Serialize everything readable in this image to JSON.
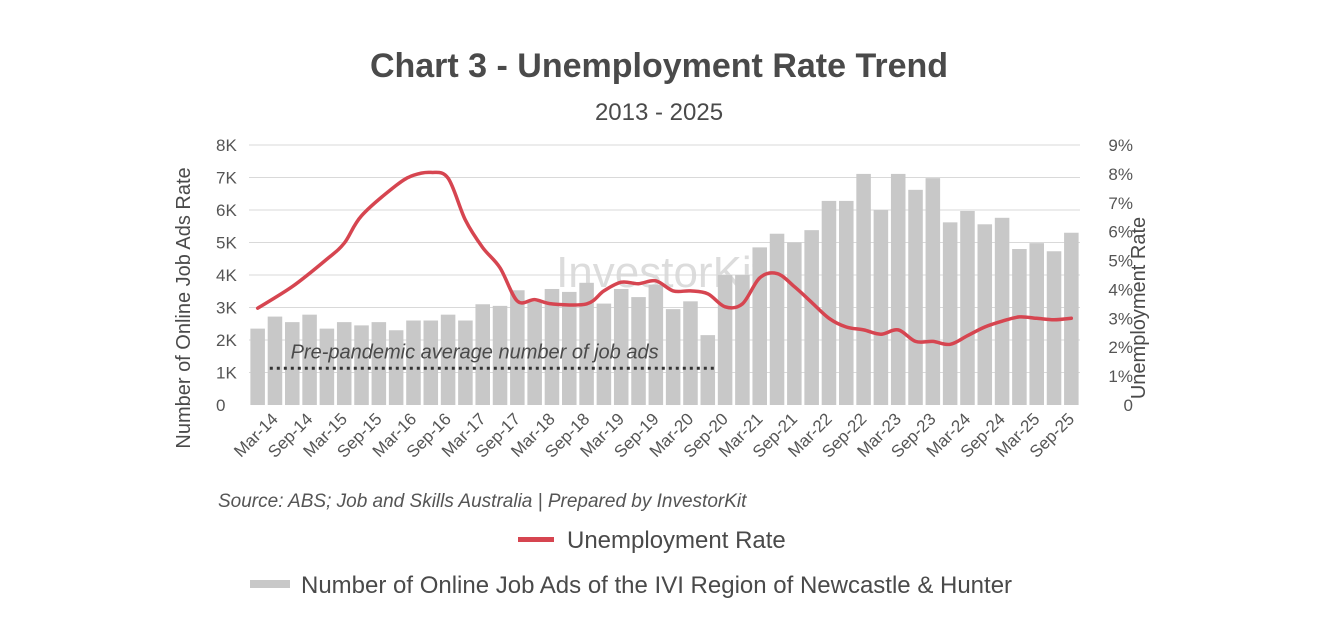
{
  "chart_data": {
    "type": "bar+line",
    "title": "Chart 3 - Unemployment Rate Trend",
    "subtitle": "2013 - 2025",
    "ylabel_left": "Number of Online Job Ads Rate",
    "ylabel_right": "Unemployment Rate",
    "y_left_ticks": [
      "0",
      "1K",
      "2K",
      "3K",
      "4K",
      "5K",
      "6K",
      "7K",
      "8K"
    ],
    "y_right_ticks": [
      "0",
      "1%",
      "2%",
      "3%",
      "4%",
      "5%",
      "6%",
      "7%",
      "8%",
      "9%"
    ],
    "ylim_left": [
      0,
      8000
    ],
    "ylim_right": [
      0,
      9
    ],
    "grid": true,
    "x_labels": [
      "Mar-14",
      "Sep-14",
      "Mar-15",
      "Sep-15",
      "Mar-16",
      "Sep-16",
      "Mar-17",
      "Sep-17",
      "Mar-18",
      "Sep-18",
      "Mar-19",
      "Sep-19",
      "Mar-20",
      "Sep-20",
      "Mar-21",
      "Sep-21",
      "Mar-22",
      "Sep-22",
      "Mar-23",
      "Sep-23",
      "Mar-24",
      "Sep-24",
      "Mar-25",
      "Sep-25"
    ],
    "bars": {
      "name": "Number of Online Job Ads of the IVI Region of Newcastle & Hunter",
      "color": "#c8c8c8",
      "values": [
        2350,
        2720,
        2550,
        2780,
        2350,
        2550,
        2450,
        2550,
        2300,
        2600,
        2600,
        2780,
        2600,
        3100,
        3050,
        3530,
        3180,
        3570,
        3480,
        3760,
        3120,
        3570,
        3320,
        3700,
        2950,
        3190,
        2150,
        4000,
        4000,
        4850,
        5270,
        5000,
        5380,
        6280,
        6280,
        7110,
        6000,
        7110,
        6620,
        6980,
        5620,
        5970,
        5560,
        5760,
        4800,
        4980,
        4730,
        5300
      ]
    },
    "line": {
      "name": "Unemployment Rate",
      "color": "#d64550",
      "x_position": [
        0,
        2,
        4,
        5,
        6,
        8,
        9,
        10,
        11,
        12,
        13,
        14,
        15,
        16,
        17,
        19,
        20,
        21,
        22,
        23,
        24,
        25,
        26,
        27,
        28,
        29,
        30,
        31,
        32,
        33,
        34,
        35,
        36,
        37,
        38,
        39,
        40,
        41,
        42,
        43,
        44,
        45,
        46,
        47
      ],
      "values": [
        3.35,
        4.1,
        5.05,
        5.6,
        6.55,
        7.6,
        7.95,
        8.05,
        7.85,
        6.4,
        5.45,
        4.75,
        3.6,
        3.65,
        3.5,
        3.5,
        3.95,
        4.25,
        4.2,
        4.3,
        3.95,
        3.95,
        3.85,
        3.4,
        3.5,
        4.4,
        4.55,
        4.1,
        3.55,
        3.0,
        2.7,
        2.6,
        2.45,
        2.6,
        2.2,
        2.2,
        2.1,
        2.4,
        2.7,
        2.9,
        3.05,
        3.0,
        2.95,
        3.0
      ]
    },
    "annotation": {
      "text": "Pre-pandemic average number of job ads",
      "value": 1130
    },
    "watermark": "InvestorKit",
    "source": "Source: ABS; Job and Skills Australia | Prepared by InvestorKit",
    "legend_position": "bottom"
  }
}
